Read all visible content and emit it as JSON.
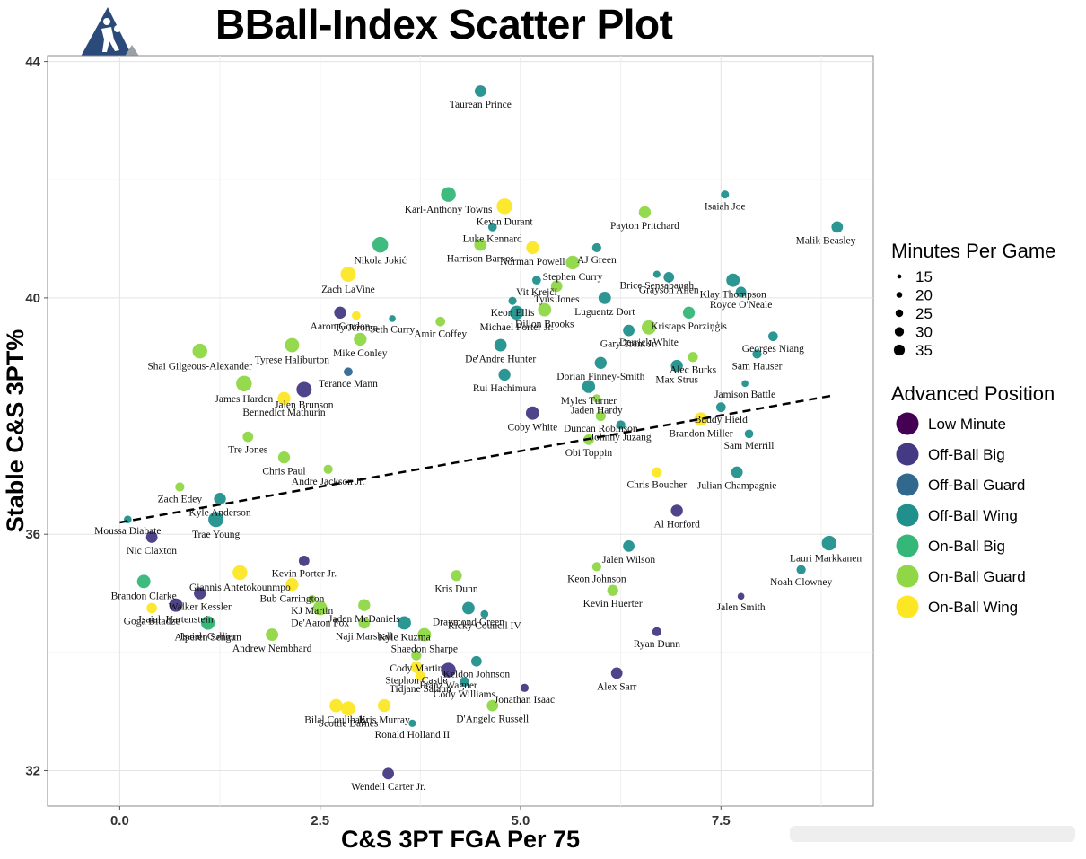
{
  "chart_data": {
    "type": "scatter",
    "title": "BBall-Index Scatter Plot",
    "xlabel": "C&S 3PT FGA Per 75",
    "ylabel": "Stable C&S 3PT%",
    "xlim": [
      -0.9,
      9.4
    ],
    "ylim": [
      31.4,
      44.1
    ],
    "x_ticks": [
      "0.0",
      "2.5",
      "5.0",
      "7.5"
    ],
    "x_tick_values": [
      0,
      2.5,
      5,
      7.5
    ],
    "y_ticks": [
      "32",
      "36",
      "40",
      "44"
    ],
    "y_tick_values": [
      32,
      36,
      40,
      44
    ],
    "grid": true,
    "trend_line": {
      "style": "dashed",
      "x": [
        0,
        8.9
      ],
      "y": [
        36.2,
        38.35
      ]
    },
    "legend_placement": "right",
    "size_legend": {
      "title": "Minutes Per Game",
      "values": [
        15,
        20,
        25,
        30,
        35
      ],
      "labels": [
        "15",
        "20",
        "25",
        "30",
        "35"
      ]
    },
    "color_legend": {
      "title": "Advanced Position",
      "categories": [
        "Low Minute",
        "Off-Ball Big",
        "Off-Ball Guard",
        "Off-Ball Wing",
        "On-Ball Big",
        "On-Ball Guard",
        "On-Ball Wing"
      ],
      "colors": [
        "#440154",
        "#443a83",
        "#31688e",
        "#21908d",
        "#35b779",
        "#8fd744",
        "#fde725"
      ]
    },
    "points": [
      {
        "label": "Taurean Prince",
        "x": 4.5,
        "y": 43.5,
        "mpg": 27,
        "pos": "Off-Ball Wing"
      },
      {
        "label": "Karl-Anthony Towns",
        "x": 4.1,
        "y": 41.75,
        "mpg": 34,
        "pos": "On-Ball Big"
      },
      {
        "label": "Kevin Durant",
        "x": 4.8,
        "y": 41.55,
        "mpg": 36,
        "pos": "On-Ball Wing"
      },
      {
        "label": "Isaiah Joe",
        "x": 7.55,
        "y": 41.75,
        "mpg": 20,
        "pos": "Off-Ball Wing"
      },
      {
        "label": "Luke Kennard",
        "x": 4.65,
        "y": 41.2,
        "mpg": 21,
        "pos": "Off-Ball Wing"
      },
      {
        "label": "Payton Pritchard",
        "x": 6.55,
        "y": 41.45,
        "mpg": 28,
        "pos": "On-Ball Guard"
      },
      {
        "label": "Malik Beasley",
        "x": 8.95,
        "y": 41.2,
        "mpg": 27,
        "pos": "Off-Ball Wing"
      },
      {
        "label": "Nikola Jokić",
        "x": 3.25,
        "y": 40.9,
        "mpg": 36,
        "pos": "On-Ball Big"
      },
      {
        "label": "Harrison Barnes",
        "x": 4.5,
        "y": 40.9,
        "mpg": 29,
        "pos": "On-Ball Guard"
      },
      {
        "label": "Norman Powell",
        "x": 5.15,
        "y": 40.85,
        "mpg": 30,
        "pos": "On-Ball Wing"
      },
      {
        "label": "AJ Green",
        "x": 5.95,
        "y": 40.85,
        "mpg": 22,
        "pos": "Off-Ball Wing"
      },
      {
        "label": "Stephen Curry",
        "x": 5.65,
        "y": 40.6,
        "mpg": 32,
        "pos": "On-Ball Guard"
      },
      {
        "label": "Zach LaVine",
        "x": 2.85,
        "y": 40.4,
        "mpg": 35,
        "pos": "On-Ball Wing"
      },
      {
        "label": "Brice Sensabaugh",
        "x": 6.7,
        "y": 40.4,
        "mpg": 18,
        "pos": "Off-Ball Wing"
      },
      {
        "label": "Grayson Allen",
        "x": 6.85,
        "y": 40.35,
        "mpg": 25,
        "pos": "Off-Ball Wing"
      },
      {
        "label": "Klay Thompson",
        "x": 7.65,
        "y": 40.3,
        "mpg": 31,
        "pos": "Off-Ball Wing"
      },
      {
        "label": "Vit Krejčí",
        "x": 5.2,
        "y": 40.3,
        "mpg": 21,
        "pos": "Off-Ball Wing"
      },
      {
        "label": "Royce O'Neale",
        "x": 7.75,
        "y": 40.1,
        "mpg": 25,
        "pos": "Off-Ball Wing"
      },
      {
        "label": "Tyus Jones",
        "x": 5.45,
        "y": 40.2,
        "mpg": 27,
        "pos": "On-Ball Guard"
      },
      {
        "label": "Luguentz Dort",
        "x": 6.05,
        "y": 40.0,
        "mpg": 29,
        "pos": "Off-Ball Wing"
      },
      {
        "label": "Keon Ellis",
        "x": 4.9,
        "y": 39.95,
        "mpg": 20,
        "pos": "Off-Ball Wing"
      },
      {
        "label": "Ty Jerome",
        "x": 2.95,
        "y": 39.7,
        "mpg": 21,
        "pos": "On-Ball Wing"
      },
      {
        "label": "Seth Curry",
        "x": 3.4,
        "y": 39.65,
        "mpg": 17,
        "pos": "Off-Ball Wing"
      },
      {
        "label": "Aaron Gordon",
        "x": 2.75,
        "y": 39.75,
        "mpg": 28,
        "pos": "Off-Ball Big"
      },
      {
        "label": "Kristaps Porziņģis",
        "x": 7.1,
        "y": 39.75,
        "mpg": 28,
        "pos": "On-Ball Big"
      },
      {
        "label": "Amir Coffey",
        "x": 4.0,
        "y": 39.6,
        "mpg": 23,
        "pos": "On-Ball Guard"
      },
      {
        "label": "Michael Porter Jr.",
        "x": 4.95,
        "y": 39.75,
        "mpg": 32,
        "pos": "Off-Ball Wing"
      },
      {
        "label": "Dillon Brooks",
        "x": 5.3,
        "y": 39.8,
        "mpg": 31,
        "pos": "On-Ball Guard"
      },
      {
        "label": "Gary Trent Jr.",
        "x": 6.35,
        "y": 39.45,
        "mpg": 27,
        "pos": "Off-Ball Wing"
      },
      {
        "label": "Derrick White",
        "x": 6.6,
        "y": 39.5,
        "mpg": 33,
        "pos": "On-Ball Guard"
      },
      {
        "label": "Georges Niang",
        "x": 8.15,
        "y": 39.35,
        "mpg": 23,
        "pos": "Off-Ball Wing"
      },
      {
        "label": "Alec Burks",
        "x": 7.15,
        "y": 39.0,
        "mpg": 24,
        "pos": "On-Ball Guard"
      },
      {
        "label": "Sam Hauser",
        "x": 7.95,
        "y": 39.05,
        "mpg": 22,
        "pos": "Off-Ball Wing"
      },
      {
        "label": "Shai Gilgeous-Alexander",
        "x": 1.0,
        "y": 39.1,
        "mpg": 34,
        "pos": "On-Ball Guard"
      },
      {
        "label": "Tyrese Haliburton",
        "x": 2.15,
        "y": 39.2,
        "mpg": 33,
        "pos": "On-Ball Guard"
      },
      {
        "label": "Mike Conley",
        "x": 3.0,
        "y": 39.3,
        "mpg": 30,
        "pos": "On-Ball Guard"
      },
      {
        "label": "De'Andre Hunter",
        "x": 4.75,
        "y": 39.2,
        "mpg": 29,
        "pos": "Off-Ball Wing"
      },
      {
        "label": "Dorian Finney-Smith",
        "x": 6.0,
        "y": 38.9,
        "mpg": 28,
        "pos": "Off-Ball Wing"
      },
      {
        "label": "Rui Hachimura",
        "x": 4.8,
        "y": 38.7,
        "mpg": 28,
        "pos": "Off-Ball Wing"
      },
      {
        "label": "Max Strus",
        "x": 6.95,
        "y": 38.85,
        "mpg": 28,
        "pos": "Off-Ball Wing"
      },
      {
        "label": "Jamison Battle",
        "x": 7.8,
        "y": 38.55,
        "mpg": 17,
        "pos": "Off-Ball Wing"
      },
      {
        "label": "Myles Turner",
        "x": 5.85,
        "y": 38.5,
        "mpg": 30,
        "pos": "Off-Ball Wing"
      },
      {
        "label": "Jalen Brunson",
        "x": 2.3,
        "y": 38.45,
        "mpg": 35,
        "pos": "Off-Ball Big"
      },
      {
        "label": "James Harden",
        "x": 1.55,
        "y": 38.55,
        "mpg": 36,
        "pos": "On-Ball Guard"
      },
      {
        "label": "Terance Mann",
        "x": 2.85,
        "y": 38.75,
        "mpg": 21,
        "pos": "Off-Ball Guard"
      },
      {
        "label": "Jaden Hardy",
        "x": 5.95,
        "y": 38.3,
        "mpg": 20,
        "pos": "On-Ball Guard"
      },
      {
        "label": "Buddy Hield",
        "x": 7.5,
        "y": 38.15,
        "mpg": 23,
        "pos": "Off-Ball Wing"
      },
      {
        "label": "Bennedict Mathurin",
        "x": 2.05,
        "y": 38.3,
        "mpg": 30,
        "pos": "On-Ball Wing"
      },
      {
        "label": "Duncan Robinson",
        "x": 6.0,
        "y": 38.0,
        "mpg": 24,
        "pos": "On-Ball Guard"
      },
      {
        "label": "Johnny Juzang",
        "x": 6.25,
        "y": 37.85,
        "mpg": 22,
        "pos": "Off-Ball Wing"
      },
      {
        "label": "Coby White",
        "x": 5.15,
        "y": 38.05,
        "mpg": 31,
        "pos": "Off-Ball Big"
      },
      {
        "label": "Sam Merrill",
        "x": 7.85,
        "y": 37.7,
        "mpg": 21,
        "pos": "Off-Ball Wing"
      },
      {
        "label": "Tre Jones",
        "x": 1.6,
        "y": 37.65,
        "mpg": 25,
        "pos": "On-Ball Guard"
      },
      {
        "label": "Brandon Miller",
        "x": 7.25,
        "y": 37.95,
        "mpg": 31,
        "pos": "On-Ball Wing"
      },
      {
        "label": "Obi Toppin",
        "x": 5.85,
        "y": 37.6,
        "mpg": 25,
        "pos": "On-Ball Guard"
      },
      {
        "label": "Chris Paul",
        "x": 2.05,
        "y": 37.3,
        "mpg": 28,
        "pos": "On-Ball Guard"
      },
      {
        "label": "Andre Jackson Jr.",
        "x": 2.6,
        "y": 37.1,
        "mpg": 22,
        "pos": "On-Ball Guard"
      },
      {
        "label": "Chris Boucher",
        "x": 6.7,
        "y": 37.05,
        "mpg": 24,
        "pos": "On-Ball Wing"
      },
      {
        "label": "Zach Edey",
        "x": 0.75,
        "y": 36.8,
        "mpg": 22,
        "pos": "On-Ball Guard"
      },
      {
        "label": "Julian Champagnie",
        "x": 7.7,
        "y": 37.05,
        "mpg": 27,
        "pos": "Off-Ball Wing"
      },
      {
        "label": "Kyle Anderson",
        "x": 1.25,
        "y": 36.6,
        "mpg": 28,
        "pos": "Off-Ball Wing"
      },
      {
        "label": "Moussa Diabate",
        "x": 0.1,
        "y": 36.25,
        "mpg": 19,
        "pos": "Off-Ball Wing"
      },
      {
        "label": "Trae Young",
        "x": 1.2,
        "y": 36.25,
        "mpg": 35,
        "pos": "Off-Ball Wing"
      },
      {
        "label": "Al Horford",
        "x": 6.95,
        "y": 36.4,
        "mpg": 28,
        "pos": "Off-Ball Big"
      },
      {
        "label": "Nic Claxton",
        "x": 0.4,
        "y": 35.95,
        "mpg": 27,
        "pos": "Off-Ball Big"
      },
      {
        "label": "Lauri Markkanen",
        "x": 8.85,
        "y": 35.85,
        "mpg": 34,
        "pos": "Off-Ball Wing"
      },
      {
        "label": "Giannis Antetokounmpo",
        "x": 1.5,
        "y": 35.35,
        "mpg": 34,
        "pos": "On-Ball Wing"
      },
      {
        "label": "Kevin Porter Jr.",
        "x": 2.3,
        "y": 35.55,
        "mpg": 25,
        "pos": "Off-Ball Big"
      },
      {
        "label": "Jalen Wilson",
        "x": 6.35,
        "y": 35.8,
        "mpg": 27,
        "pos": "Off-Ball Wing"
      },
      {
        "label": "Kris Dunn",
        "x": 4.2,
        "y": 35.3,
        "mpg": 26,
        "pos": "On-Ball Guard"
      },
      {
        "label": "Keon Johnson",
        "x": 5.95,
        "y": 35.45,
        "mpg": 22,
        "pos": "On-Ball Guard"
      },
      {
        "label": "Brandon Clarke",
        "x": 0.3,
        "y": 35.2,
        "mpg": 31,
        "pos": "On-Ball Big"
      },
      {
        "label": "Noah Clowney",
        "x": 8.5,
        "y": 35.4,
        "mpg": 22,
        "pos": "Off-Ball Wing"
      },
      {
        "label": "Bub Carrington",
        "x": 2.15,
        "y": 35.15,
        "mpg": 30,
        "pos": "On-Ball Wing"
      },
      {
        "label": "Isaiah Hartenstein",
        "x": 0.7,
        "y": 34.8,
        "mpg": 31,
        "pos": "Off-Ball Big"
      },
      {
        "label": "Walker Kessler",
        "x": 1.0,
        "y": 35.0,
        "mpg": 28,
        "pos": "Off-Ball Big"
      },
      {
        "label": "KJ Martin",
        "x": 2.4,
        "y": 34.9,
        "mpg": 20,
        "pos": "On-Ball Guard"
      },
      {
        "label": "Jaden McDaniels",
        "x": 3.05,
        "y": 34.8,
        "mpg": 28,
        "pos": "On-Ball Guard"
      },
      {
        "label": "Draymond Green",
        "x": 4.35,
        "y": 34.75,
        "mpg": 29,
        "pos": "Off-Ball Wing"
      },
      {
        "label": "Kevin Huerter",
        "x": 6.15,
        "y": 35.05,
        "mpg": 26,
        "pos": "On-Ball Guard"
      },
      {
        "label": "Jalen Smith",
        "x": 7.75,
        "y": 34.95,
        "mpg": 17,
        "pos": "Off-Ball Big"
      },
      {
        "label": "Goga Bitadze",
        "x": 0.4,
        "y": 34.75,
        "mpg": 25,
        "pos": "On-Ball Wing"
      },
      {
        "label": "Isaiah Collier",
        "x": 1.1,
        "y": 34.5,
        "mpg": 27,
        "pos": "On-Ball Big"
      },
      {
        "label": "De'Aaron Fox",
        "x": 2.5,
        "y": 34.75,
        "mpg": 33,
        "pos": "On-Ball Guard"
      },
      {
        "label": "Naji Marshall",
        "x": 3.05,
        "y": 34.5,
        "mpg": 27,
        "pos": "On-Ball Guard"
      },
      {
        "label": "Kyle Kuzma",
        "x": 3.55,
        "y": 34.5,
        "mpg": 31,
        "pos": "Off-Ball Wing"
      },
      {
        "label": "Ricky Council IV",
        "x": 4.55,
        "y": 34.65,
        "mpg": 19,
        "pos": "Off-Ball Wing"
      },
      {
        "label": "Ryan Dunn",
        "x": 6.7,
        "y": 34.35,
        "mpg": 22,
        "pos": "Off-Ball Big"
      },
      {
        "label": "Andrew Nembhard",
        "x": 1.9,
        "y": 34.3,
        "mpg": 29,
        "pos": "On-Ball Guard"
      },
      {
        "label": "Shaedon Sharpe",
        "x": 3.8,
        "y": 34.3,
        "mpg": 31,
        "pos": "On-Ball Guard"
      },
      {
        "label": "Cody Martin",
        "x": 3.7,
        "y": 33.95,
        "mpg": 24,
        "pos": "On-Ball Guard"
      },
      {
        "label": "Keldon Johnson",
        "x": 4.45,
        "y": 33.85,
        "mpg": 25,
        "pos": "Off-Ball Wing"
      },
      {
        "label": "Alex Sarr",
        "x": 6.2,
        "y": 33.65,
        "mpg": 27,
        "pos": "Off-Ball Big"
      },
      {
        "label": "Alperen Sengun",
        "x": 1.1,
        "y": 34.5,
        "mpg": 32,
        "pos": "On-Ball Big"
      },
      {
        "label": "Stephon Castle",
        "x": 3.7,
        "y": 33.75,
        "mpg": 27,
        "pos": "On-Ball Wing"
      },
      {
        "label": "Franz Wagner",
        "x": 4.1,
        "y": 33.7,
        "mpg": 34,
        "pos": "Off-Ball Big"
      },
      {
        "label": "Tidjane Salaun",
        "x": 3.75,
        "y": 33.6,
        "mpg": 24,
        "pos": "On-Ball Wing"
      },
      {
        "label": "Jonathan Isaac",
        "x": 5.05,
        "y": 33.4,
        "mpg": 20,
        "pos": "Off-Ball Big"
      },
      {
        "label": "Cody Williams",
        "x": 4.3,
        "y": 33.5,
        "mpg": 23,
        "pos": "Off-Ball Wing"
      },
      {
        "label": "Bilal Coulibaly",
        "x": 2.7,
        "y": 33.1,
        "mpg": 31,
        "pos": "On-Ball Wing"
      },
      {
        "label": "Kris Murray",
        "x": 3.3,
        "y": 33.1,
        "mpg": 30,
        "pos": "On-Ball Wing"
      },
      {
        "label": "D'Angelo Russell",
        "x": 4.65,
        "y": 33.1,
        "mpg": 27,
        "pos": "On-Ball Guard"
      },
      {
        "label": "Scottie Barnes",
        "x": 2.85,
        "y": 33.05,
        "mpg": 33,
        "pos": "On-Ball Wing"
      },
      {
        "label": "Ronald Holland II",
        "x": 3.65,
        "y": 32.8,
        "mpg": 18,
        "pos": "Off-Ball Wing"
      },
      {
        "label": "Wendell Carter Jr.",
        "x": 3.35,
        "y": 31.95,
        "mpg": 27,
        "pos": "Off-Ball Big"
      }
    ]
  }
}
